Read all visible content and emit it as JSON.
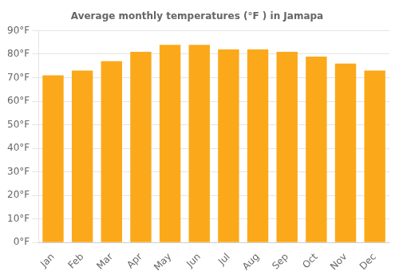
{
  "chart_data": {
    "type": "bar",
    "title": "Average monthly temperatures (°F ) in Jamapa",
    "categories": [
      "Jan",
      "Feb",
      "Mar",
      "Apr",
      "May",
      "Jun",
      "Jul",
      "Aug",
      "Sep",
      "Oct",
      "Nov",
      "Dec"
    ],
    "values": [
      71,
      73,
      77,
      81,
      84,
      84,
      82,
      82,
      81,
      79,
      76,
      73
    ],
    "color": "#FBA91A",
    "ylim": [
      0,
      90
    ],
    "yticks": [
      {
        "value": 0,
        "label": "0°F"
      },
      {
        "value": 10,
        "label": "10°F"
      },
      {
        "value": 20,
        "label": "20°F"
      },
      {
        "value": 30,
        "label": "30°F"
      },
      {
        "value": 40,
        "label": "40°F"
      },
      {
        "value": 50,
        "label": "50°F"
      },
      {
        "value": 60,
        "label": "60°F"
      },
      {
        "value": 70,
        "label": "70°F"
      },
      {
        "value": 80,
        "label": "80°F"
      },
      {
        "value": 90,
        "label": "90°F"
      }
    ],
    "grid": true
  }
}
